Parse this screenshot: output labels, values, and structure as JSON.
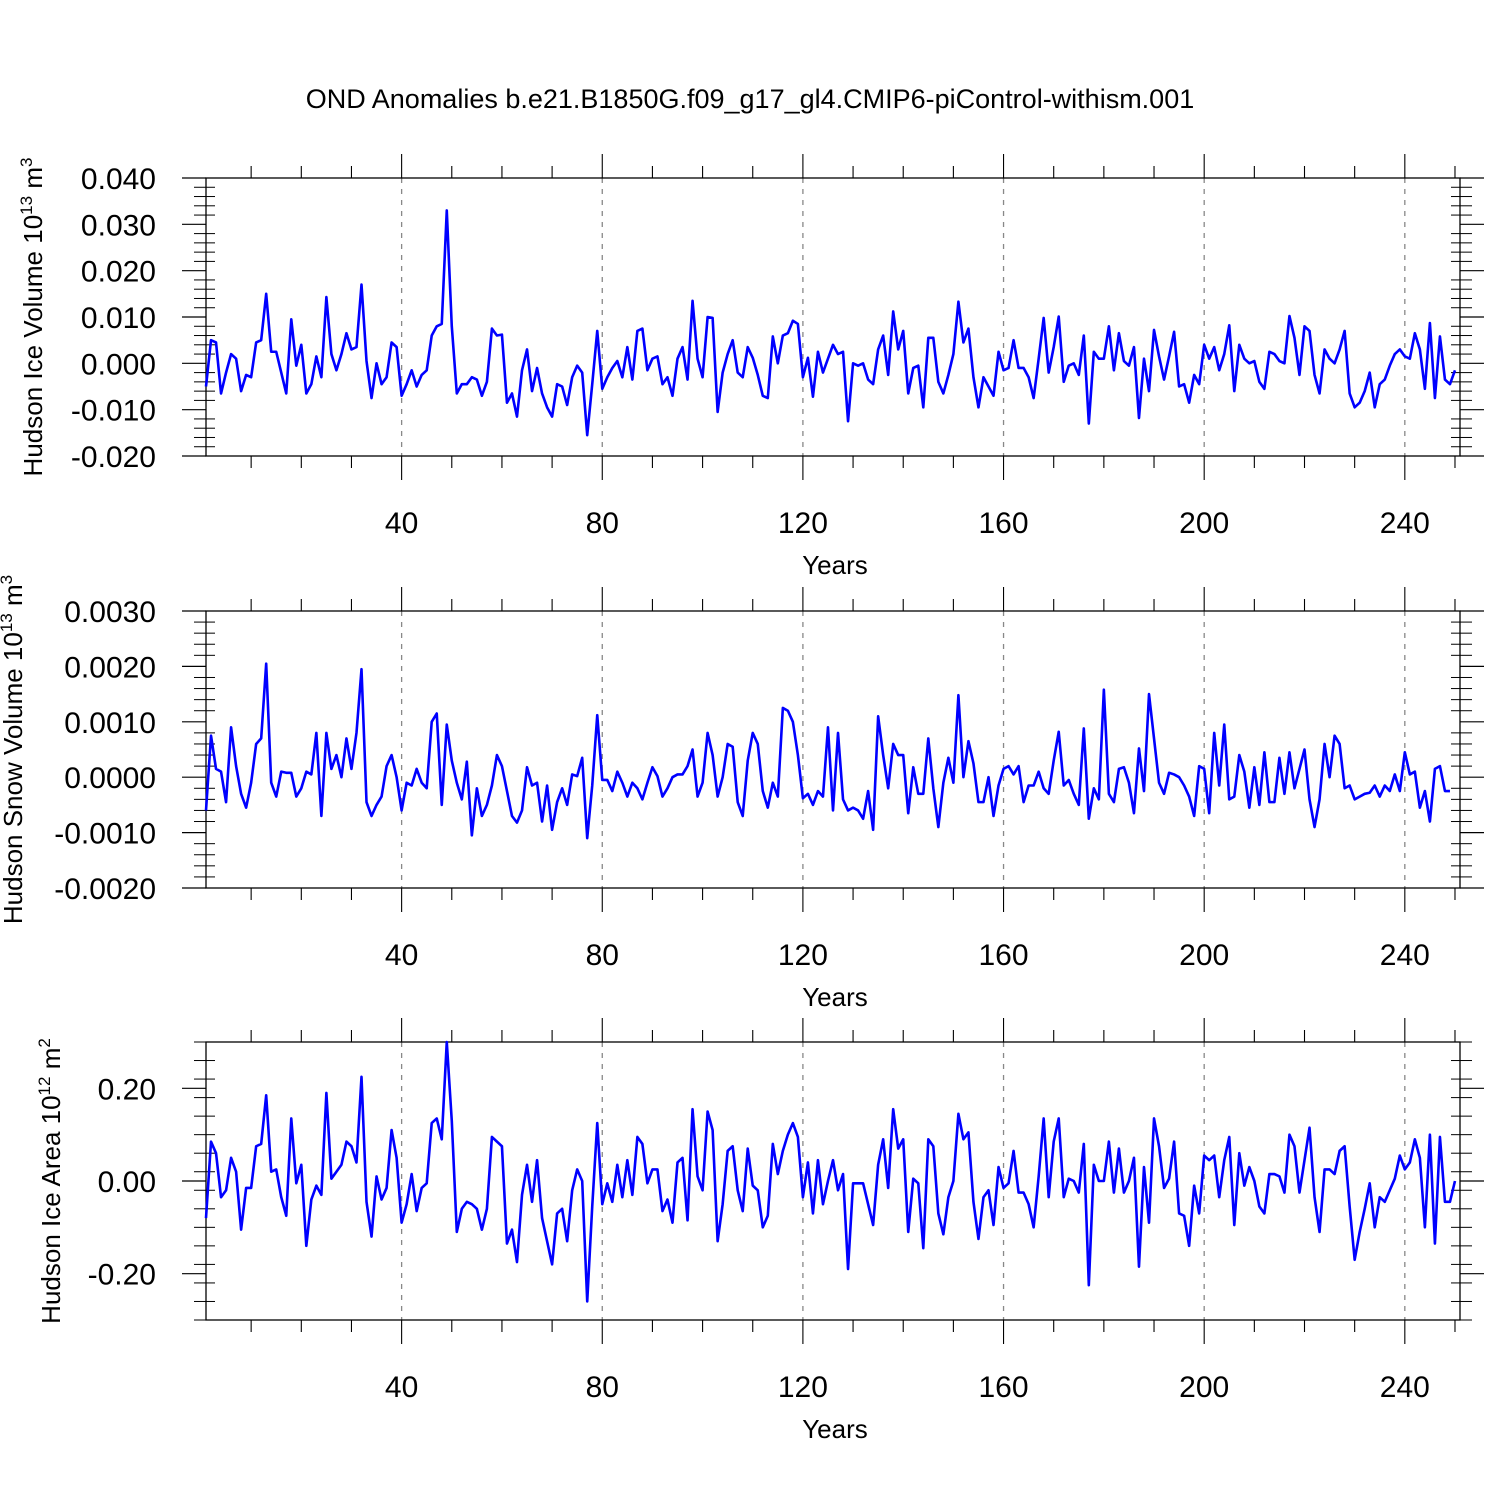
{
  "title": "OND Anomalies b.e21.B1850G.f09_g17_gl4.CMIP6-piControl-withism.001",
  "line_color": "#0000ff",
  "chart_data": [
    {
      "type": "line",
      "ylabel": "Hudson Ice Volume 10",
      "yexp": "13",
      "yunit": " m",
      "yunit_exp": "3",
      "xlabel": "Years",
      "xlim": [
        1,
        251
      ],
      "ylim": [
        -0.02,
        0.04
      ],
      "xticks": [
        40,
        80,
        120,
        160,
        200,
        240
      ],
      "xtick_labels": [
        "40",
        "80",
        "120",
        "160",
        "200",
        "240"
      ],
      "yticks": [
        -0.02,
        -0.01,
        0.0,
        0.01,
        0.02,
        0.03,
        0.04
      ],
      "ytick_labels": [
        "-0.020",
        "-0.010",
        "0.000",
        "0.010",
        "0.020",
        "0.030",
        "0.040"
      ],
      "grid": "vertical dashed",
      "series": [
        {
          "values": [
            -0.005,
            0.005,
            0.0045,
            -0.0065,
            -0.002,
            0.002,
            0.001,
            -0.006,
            -0.0025,
            -0.003,
            0.0045,
            0.005,
            0.015,
            0.0025,
            0.0025,
            -0.002,
            -0.0065,
            0.0095,
            -0.0005,
            0.004,
            -0.0065,
            -0.0045,
            0.0015,
            -0.003,
            0.0143,
            0.002,
            -0.0015,
            0.002,
            0.0065,
            0.003,
            0.0035,
            0.017,
            0.0005,
            -0.0075,
            0.0,
            -0.0045,
            -0.003,
            0.0045,
            0.0035,
            -0.007,
            -0.0045,
            -0.0015,
            -0.005,
            -0.0025,
            -0.0015,
            0.006,
            0.008,
            0.0085,
            0.033,
            0.008,
            -0.0065,
            -0.0045,
            -0.0045,
            -0.003,
            -0.0035,
            -0.007,
            -0.004,
            0.0075,
            0.006,
            0.0062,
            -0.0085,
            -0.0065,
            -0.0115,
            -0.0015,
            0.003,
            -0.006,
            -0.001,
            -0.0065,
            -0.0095,
            -0.0115,
            -0.0045,
            -0.005,
            -0.009,
            -0.003,
            -0.0005,
            -0.002,
            -0.0155,
            -0.0045,
            0.007,
            -0.0055,
            -0.003,
            -0.001,
            0.0005,
            -0.003,
            0.0035,
            -0.0035,
            0.007,
            0.0075,
            -0.0015,
            0.001,
            0.0015,
            -0.0045,
            -0.003,
            -0.007,
            0.001,
            0.0035,
            -0.0035,
            0.0135,
            0.001,
            -0.003,
            0.01,
            0.0098,
            -0.0105,
            -0.002,
            0.002,
            0.005,
            -0.002,
            -0.003,
            0.0035,
            0.0012,
            -0.0025,
            -0.007,
            -0.0075,
            0.0058,
            0.0,
            0.006,
            0.0065,
            0.0092,
            0.0085,
            -0.003,
            0.0012,
            -0.0072,
            0.0025,
            -0.002,
            0.001,
            0.004,
            0.002,
            0.0025,
            -0.0125,
            0.0,
            -0.0005,
            0.0,
            -0.0035,
            -0.0045,
            0.003,
            0.006,
            -0.0025,
            0.0112,
            0.003,
            0.007,
            -0.0065,
            -0.001,
            -0.0005,
            -0.0095,
            0.0055,
            0.0055,
            -0.004,
            -0.0065,
            -0.0025,
            0.002,
            0.0133,
            0.0045,
            0.0075,
            -0.003,
            -0.0095,
            -0.003,
            -0.005,
            -0.007,
            0.0025,
            -0.0015,
            -0.001,
            0.005,
            -0.001,
            -0.001,
            -0.003,
            -0.0075,
            0.001,
            0.0098,
            -0.002,
            0.0035,
            0.0101,
            -0.004,
            -0.0005,
            0.0,
            -0.0025,
            0.006,
            -0.013,
            0.0025,
            0.001,
            0.001,
            0.008,
            -0.0015,
            0.0065,
            0.0005,
            -0.0005,
            0.0035,
            -0.0118,
            0.001,
            -0.006,
            0.0072,
            0.0015,
            -0.0035,
            0.0015,
            0.0068,
            -0.005,
            -0.0045,
            -0.0085,
            -0.0025,
            -0.0045,
            0.004,
            0.001,
            0.0035,
            -0.0015,
            0.002,
            0.0082,
            -0.006,
            0.004,
            0.001,
            0.0,
            0.0005,
            -0.004,
            -0.0055,
            0.0025,
            0.002,
            0.0005,
            0.0,
            0.0102,
            0.0055,
            -0.0025,
            0.008,
            0.007,
            -0.0025,
            -0.0065,
            0.003,
            0.001,
            0.0,
            0.003,
            0.007,
            -0.0065,
            -0.0095,
            -0.0085,
            -0.006,
            -0.002,
            -0.0095,
            -0.0045,
            -0.0035,
            -0.0005,
            0.002,
            0.003,
            0.0015,
            0.001,
            0.0065,
            0.003,
            -0.0055,
            0.0087,
            -0.0075,
            0.0058,
            -0.0035,
            -0.0045,
            -0.0015
          ]
        }
      ]
    },
    {
      "type": "line",
      "ylabel": "Hudson Snow Volume 10",
      "yexp": "13",
      "yunit": " m",
      "yunit_exp": "3",
      "xlabel": "Years",
      "xlim": [
        1,
        251
      ],
      "ylim": [
        -0.002,
        0.003
      ],
      "xticks": [
        40,
        80,
        120,
        160,
        200,
        240
      ],
      "xtick_labels": [
        "40",
        "80",
        "120",
        "160",
        "200",
        "240"
      ],
      "yticks": [
        -0.002,
        -0.001,
        0.0,
        0.001,
        0.002,
        0.003
      ],
      "ytick_labels": [
        "-0.0020",
        "-0.0010",
        "0.0000",
        "0.0010",
        "0.0020",
        "0.0030"
      ],
      "grid": "vertical dashed",
      "series": [
        {
          "values": [
            -0.0006,
            0.00075,
            0.00015,
            0.0001,
            -0.00045,
            0.0009,
            0.0002,
            -0.0003,
            -0.00055,
            -0.0001,
            0.0006,
            0.0007,
            0.00205,
            -0.0001,
            -0.00035,
            0.0001,
            8e-05,
            8e-05,
            -0.00035,
            -0.0002,
            0.0001,
            5e-05,
            0.0008,
            -0.0007,
            0.0008,
            0.00015,
            0.0004,
            0.0,
            0.0007,
            0.00015,
            0.0008,
            0.00195,
            -0.00045,
            -0.0007,
            -0.0005,
            -0.00035,
            0.0002,
            0.0004,
            0.0,
            -0.0006,
            -0.0001,
            -0.00015,
            0.00015,
            -0.0001,
            -0.0002,
            0.001,
            0.00115,
            -0.0005,
            0.00095,
            0.0003,
            -0.0001,
            -0.0004,
            0.00028,
            -0.00105,
            -0.0002,
            -0.0007,
            -0.0005,
            -0.00015,
            0.0004,
            0.0002,
            -0.00025,
            -0.0007,
            -0.00082,
            -0.0006,
            0.00018,
            -0.00015,
            -0.0001,
            -0.0008,
            -0.00015,
            -0.00095,
            -0.00045,
            -0.0002,
            -0.0005,
            5e-05,
            2e-05,
            0.00035,
            -0.0011,
            -0.00015,
            0.00112,
            -5e-05,
            -5e-05,
            -0.00025,
            0.0001,
            -0.0001,
            -0.00035,
            -0.0001,
            -0.0002,
            -0.0004,
            -0.0001,
            0.00018,
            2e-05,
            -0.00035,
            -0.0002,
            0.0,
            5e-05,
            5e-05,
            0.0002,
            0.0005,
            -0.00035,
            -0.0001,
            0.0008,
            0.0004,
            -0.00035,
            0.0,
            0.0006,
            0.00055,
            -0.00045,
            -0.0007,
            0.0003,
            0.0008,
            0.0006,
            -0.00025,
            -0.00055,
            -0.0001,
            -0.00035,
            0.00125,
            0.0012,
            0.001,
            0.0004,
            -0.00038,
            -0.0003,
            -0.0005,
            -0.00025,
            -0.00035,
            0.0009,
            -0.0006,
            0.0008,
            -0.0004,
            -0.0006,
            -0.00055,
            -0.0006,
            -0.00075,
            -0.00025,
            -0.00095,
            0.0011,
            0.0004,
            -0.0002,
            0.0006,
            0.0004,
            0.0004,
            -0.00065,
            0.00018,
            -0.0003,
            -0.0003,
            0.0007,
            -0.0002,
            -0.0009,
            -0.0001,
            0.00035,
            -0.0001,
            0.00148,
            0.0,
            0.00065,
            0.00025,
            -0.00045,
            -0.00045,
            0.0,
            -0.0007,
            -0.00015,
            0.00015,
            0.0002,
            5e-05,
            0.0002,
            -0.00045,
            -0.00015,
            -0.00015,
            0.0001,
            -0.0002,
            -0.0003,
            0.0003,
            0.00082,
            -0.00015,
            -5e-05,
            -0.0003,
            -0.0005,
            0.00088,
            -0.00075,
            -0.0002,
            -0.0004,
            0.00158,
            -0.0003,
            -0.00045,
            0.00015,
            0.00018,
            -0.0001,
            -0.00065,
            0.00052,
            -0.00025,
            0.0015,
            0.0007,
            -0.0001,
            -0.0003,
            8e-05,
            5e-05,
            0.0,
            -0.00015,
            -0.00035,
            -0.0007,
            0.0002,
            0.00015,
            -0.00065,
            0.0008,
            -0.00015,
            0.00095,
            -0.0004,
            -0.00035,
            0.0004,
            0.0001,
            -0.00055,
            0.00018,
            -0.0005,
            0.00045,
            -0.00045,
            -0.00045,
            0.00035,
            -0.0003,
            0.00045,
            -0.0002,
            0.00015,
            0.0005,
            -0.0004,
            -0.0009,
            -0.0004,
            0.0006,
            0.0,
            0.00075,
            0.0006,
            -0.0002,
            -0.00015,
            -0.0004,
            -0.00035,
            -0.0003,
            -0.00028,
            -0.00015,
            -0.00035,
            -0.00015,
            -0.00025,
            5e-05,
            -0.00025,
            0.00045,
            5e-05,
            0.0001,
            -0.00055,
            -0.00025,
            -0.0008,
            0.00015,
            0.0002,
            -0.00025,
            -0.00025
          ]
        }
      ]
    },
    {
      "type": "line",
      "ylabel": "Hudson Ice Area 10",
      "yexp": "12",
      "yunit": " m",
      "yunit_exp": "2",
      "xlabel": "Years",
      "xlim": [
        1,
        251
      ],
      "ylim": [
        -0.3,
        0.3
      ],
      "xticks": [
        40,
        80,
        120,
        160,
        200,
        240
      ],
      "xtick_labels": [
        "40",
        "80",
        "120",
        "160",
        "200",
        "240"
      ],
      "yticks": [
        -0.2,
        0.0,
        0.2
      ],
      "ytick_labels": [
        "-0.20",
        "0.00",
        "0.20"
      ],
      "grid": "vertical dashed",
      "series": [
        {
          "values": [
            -0.08,
            0.085,
            0.06,
            -0.035,
            -0.02,
            0.05,
            0.02,
            -0.105,
            -0.015,
            -0.015,
            0.075,
            0.08,
            0.185,
            0.02,
            0.025,
            -0.035,
            -0.075,
            0.135,
            -0.005,
            0.035,
            -0.14,
            -0.04,
            -0.01,
            -0.03,
            0.19,
            0.005,
            0.02,
            0.035,
            0.085,
            0.075,
            0.04,
            0.225,
            -0.045,
            -0.12,
            0.01,
            -0.04,
            -0.015,
            0.11,
            0.05,
            -0.09,
            -0.05,
            0.015,
            -0.065,
            -0.015,
            -0.005,
            0.125,
            0.135,
            0.09,
            0.3,
            0.13,
            -0.11,
            -0.06,
            -0.045,
            -0.05,
            -0.06,
            -0.105,
            -0.06,
            0.095,
            0.085,
            0.075,
            -0.135,
            -0.105,
            -0.175,
            -0.03,
            0.035,
            -0.045,
            0.045,
            -0.08,
            -0.13,
            -0.18,
            -0.07,
            -0.06,
            -0.13,
            -0.02,
            0.025,
            0.0,
            -0.26,
            -0.055,
            0.125,
            -0.05,
            -0.005,
            -0.045,
            0.035,
            -0.035,
            0.045,
            -0.03,
            0.095,
            0.08,
            -0.005,
            0.025,
            0.025,
            -0.065,
            -0.04,
            -0.09,
            0.04,
            0.05,
            -0.085,
            0.155,
            0.01,
            -0.02,
            0.15,
            0.11,
            -0.13,
            -0.05,
            0.065,
            0.075,
            -0.02,
            -0.065,
            0.07,
            -0.01,
            -0.02,
            -0.1,
            -0.075,
            0.08,
            0.015,
            0.065,
            0.1,
            0.125,
            0.095,
            -0.035,
            0.04,
            -0.07,
            0.045,
            -0.05,
            0.0,
            0.045,
            -0.02,
            0.015,
            -0.19,
            -0.005,
            -0.005,
            -0.005,
            -0.05,
            -0.095,
            0.035,
            0.09,
            -0.015,
            0.155,
            0.07,
            0.09,
            -0.11,
            0.005,
            -0.005,
            -0.145,
            0.09,
            0.075,
            -0.07,
            -0.115,
            -0.035,
            0.0,
            0.145,
            0.09,
            0.105,
            -0.045,
            -0.125,
            -0.035,
            -0.02,
            -0.095,
            0.03,
            -0.015,
            -0.005,
            0.065,
            -0.025,
            -0.025,
            -0.05,
            -0.1,
            0.01,
            0.135,
            -0.035,
            0.085,
            0.135,
            -0.035,
            0.005,
            0.0,
            -0.025,
            0.08,
            -0.225,
            0.035,
            0.0,
            0.0,
            0.085,
            -0.025,
            0.07,
            -0.025,
            0.0,
            0.05,
            -0.185,
            0.03,
            -0.09,
            0.135,
            0.075,
            -0.015,
            0.005,
            0.085,
            -0.07,
            -0.075,
            -0.14,
            -0.01,
            -0.07,
            0.055,
            0.045,
            0.055,
            -0.035,
            0.045,
            0.095,
            -0.095,
            0.06,
            -0.01,
            0.03,
            0.0,
            -0.055,
            -0.07,
            0.015,
            0.015,
            0.01,
            -0.025,
            0.1,
            0.075,
            -0.025,
            0.045,
            0.115,
            -0.035,
            -0.11,
            0.025,
            0.025,
            0.015,
            0.065,
            0.075,
            -0.055,
            -0.17,
            -0.11,
            -0.06,
            -0.005,
            -0.1,
            -0.035,
            -0.045,
            -0.02,
            0.005,
            0.055,
            0.025,
            0.04,
            0.09,
            0.05,
            -0.1,
            0.1,
            -0.135,
            0.095,
            -0.045,
            -0.045,
            0.0
          ]
        }
      ]
    }
  ]
}
